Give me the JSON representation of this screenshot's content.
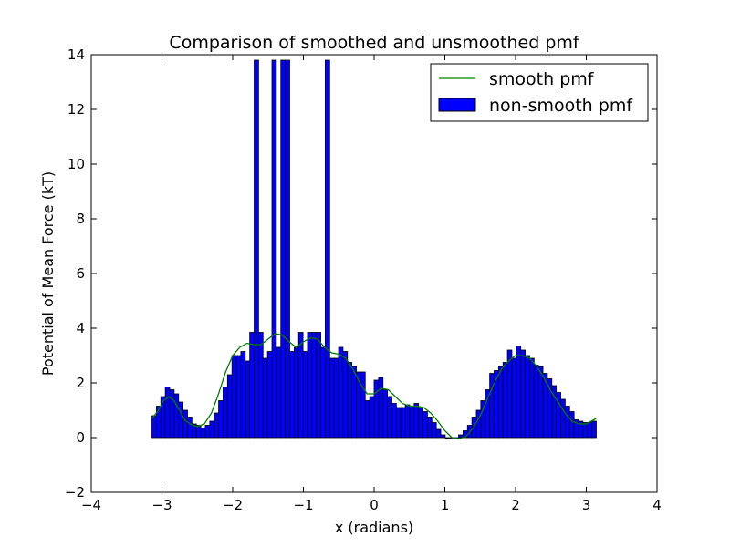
{
  "chart_data": {
    "type": "bar",
    "title": "Comparison of smoothed and unsmoothed pmf",
    "xlabel": "x (radians)",
    "ylabel": "Potential of Mean Force (kT)",
    "xlim": [
      -4,
      4
    ],
    "ylim": [
      -2,
      14
    ],
    "xticks": [
      -4,
      -3,
      -2,
      -1,
      0,
      1,
      2,
      3,
      4
    ],
    "yticks": [
      -2,
      0,
      2,
      4,
      6,
      8,
      10,
      12,
      14
    ],
    "xtick_labels": [
      "−4",
      "−3",
      "−2",
      "−1",
      "0",
      "1",
      "2",
      "3",
      "4"
    ],
    "ytick_labels": [
      "−2",
      "0",
      "2",
      "4",
      "6",
      "8",
      "10",
      "12",
      "14"
    ],
    "grid": false,
    "legend_position": "top-right",
    "bin_range": [
      -3.1416,
      3.1416
    ],
    "series": [
      {
        "name": "smooth pmf",
        "kind": "line",
        "color": "#008000",
        "x": [
          -3.14,
          -3.05,
          -2.98,
          -2.9,
          -2.83,
          -2.75,
          -2.68,
          -2.6,
          -2.5,
          -2.4,
          -2.3,
          -2.2,
          -2.1,
          -2.0,
          -1.9,
          -1.8,
          -1.7,
          -1.6,
          -1.5,
          -1.4,
          -1.3,
          -1.2,
          -1.1,
          -1.0,
          -0.9,
          -0.8,
          -0.7,
          -0.6,
          -0.5,
          -0.4,
          -0.3,
          -0.2,
          -0.1,
          0.0,
          0.1,
          0.2,
          0.3,
          0.4,
          0.5,
          0.6,
          0.7,
          0.8,
          0.9,
          1.0,
          1.1,
          1.2,
          1.3,
          1.4,
          1.5,
          1.6,
          1.7,
          1.8,
          1.9,
          2.0,
          2.1,
          2.2,
          2.3,
          2.4,
          2.5,
          2.6,
          2.7,
          2.8,
          2.9,
          3.0,
          3.14
        ],
        "y": [
          0.7,
          1.0,
          1.35,
          1.5,
          1.35,
          1.0,
          0.65,
          0.5,
          0.4,
          0.5,
          0.9,
          1.6,
          2.4,
          3.0,
          3.3,
          3.45,
          3.4,
          3.4,
          3.6,
          3.8,
          3.75,
          3.5,
          3.3,
          3.5,
          3.65,
          3.6,
          3.3,
          3.1,
          3.05,
          2.9,
          2.5,
          2.0,
          1.6,
          1.6,
          1.8,
          1.75,
          1.5,
          1.25,
          1.15,
          1.15,
          1.1,
          0.9,
          0.6,
          0.25,
          0.0,
          -0.05,
          0.05,
          0.35,
          0.8,
          1.4,
          2.0,
          2.5,
          2.8,
          3.0,
          3.0,
          2.9,
          2.6,
          2.2,
          1.7,
          1.3,
          0.9,
          0.6,
          0.5,
          0.5,
          0.7
        ]
      },
      {
        "name": "non-smooth pmf",
        "kind": "bar",
        "color": "#0000ff",
        "edgecolor": "#000000",
        "values": [
          0.8,
          1.15,
          1.5,
          1.85,
          1.75,
          1.6,
          1.3,
          1.0,
          0.75,
          0.5,
          0.45,
          0.35,
          0.45,
          0.6,
          0.9,
          1.35,
          1.85,
          2.3,
          3.0,
          3.0,
          3.15,
          2.8,
          3.85,
          13.8,
          3.85,
          2.9,
          3.15,
          13.8,
          3.3,
          13.8,
          13.8,
          3.15,
          3.3,
          3.85,
          3.15,
          3.85,
          3.85,
          3.85,
          3.3,
          13.8,
          2.9,
          2.9,
          3.3,
          3.15,
          2.75,
          2.6,
          2.4,
          2.4,
          1.35,
          1.5,
          2.1,
          2.2,
          1.75,
          1.5,
          1.25,
          1.1,
          1.1,
          1.2,
          1.15,
          1.25,
          1.1,
          0.95,
          0.75,
          0.55,
          0.3,
          0.1,
          0.0,
          -0.05,
          -0.05,
          0.1,
          0.25,
          0.45,
          0.75,
          1.0,
          1.35,
          1.75,
          2.35,
          2.45,
          2.6,
          2.75,
          3.2,
          2.9,
          3.35,
          3.2,
          3.0,
          2.9,
          2.65,
          2.6,
          2.35,
          2.15,
          1.9,
          1.65,
          1.4,
          1.15,
          0.95,
          0.65,
          0.6,
          0.55,
          0.55,
          0.6
        ]
      }
    ]
  }
}
